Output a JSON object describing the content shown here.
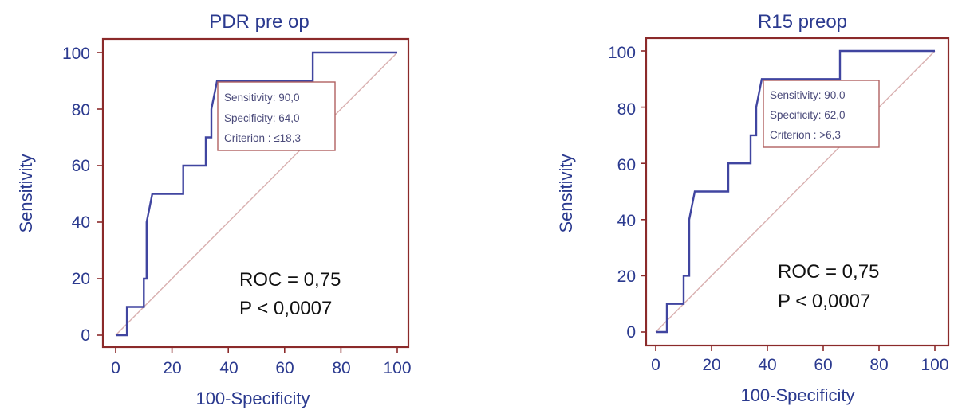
{
  "colors": {
    "frame": "#8b2a2a",
    "curve": "#4045a0",
    "diagonal": "#d9b0b0",
    "text": "#2b3a8f",
    "box_border": "#b06060"
  },
  "chart_data": [
    {
      "type": "line",
      "title": "PDR pre op",
      "xlabel": "100-Specificity",
      "ylabel": "Sensitivity",
      "xlim": [
        0,
        100
      ],
      "ylim": [
        0,
        100
      ],
      "xticks": [
        "0",
        "20",
        "40",
        "60",
        "80",
        "100"
      ],
      "yticks": [
        "0",
        "20",
        "40",
        "60",
        "80",
        "100"
      ],
      "grid": false,
      "series": [
        {
          "x": [
            0,
            4,
            4,
            10,
            10,
            11,
            11,
            12,
            13,
            24,
            24,
            32,
            32,
            34,
            34,
            35,
            36,
            70,
            70,
            100
          ],
          "y": [
            0,
            0,
            10,
            10,
            20,
            20,
            40,
            45,
            50,
            50,
            60,
            60,
            70,
            70,
            80,
            85,
            90,
            90,
            100,
            100
          ]
        }
      ],
      "reference_line": {
        "x": [
          0,
          100
        ],
        "y": [
          0,
          100
        ]
      },
      "info_box": [
        "Sensitivity: 90,0",
        "Specificity: 64,0",
        "Criterion : ≤18,3"
      ],
      "annotations": [
        "ROC = 0,75",
        "P < 0,0007"
      ]
    },
    {
      "type": "line",
      "title": "R15 preop",
      "xlabel": "100-Specificity",
      "ylabel": "Sensitivity",
      "xlim": [
        0,
        100
      ],
      "ylim": [
        0,
        100
      ],
      "xticks": [
        "0",
        "20",
        "40",
        "60",
        "80",
        "100"
      ],
      "yticks": [
        "0",
        "20",
        "40",
        "60",
        "80",
        "100"
      ],
      "grid": false,
      "series": [
        {
          "x": [
            0,
            4,
            4,
            10,
            10,
            12,
            12,
            13,
            14,
            26,
            26,
            34,
            34,
            36,
            36,
            37,
            38,
            66,
            66,
            100
          ],
          "y": [
            0,
            0,
            10,
            10,
            20,
            20,
            40,
            45,
            50,
            50,
            60,
            60,
            70,
            70,
            80,
            85,
            90,
            90,
            100,
            100
          ]
        }
      ],
      "reference_line": {
        "x": [
          0,
          100
        ],
        "y": [
          0,
          100
        ]
      },
      "info_box": [
        "Sensitivity: 90,0",
        "Specificity: 62,0",
        "Criterion : >6,3"
      ],
      "annotations": [
        "ROC = 0,75",
        "P < 0,0007"
      ]
    }
  ]
}
